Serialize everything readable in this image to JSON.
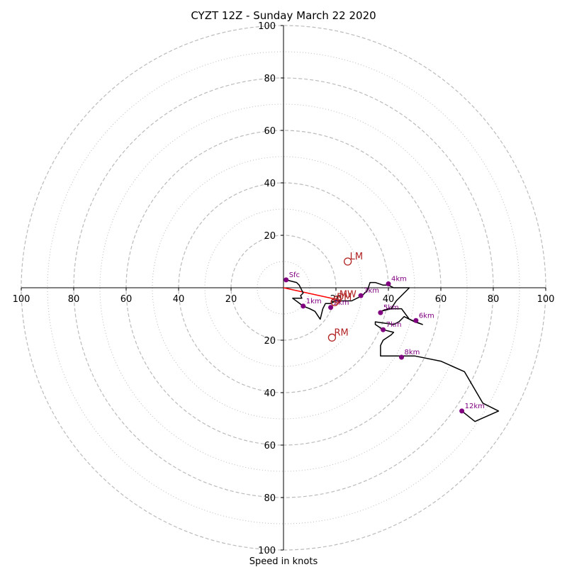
{
  "chart_data": {
    "type": "scatter",
    "title": "CYZT 12Z - Sunday March 22 2020",
    "xlabel": "Speed in knots",
    "xlim": [
      -100,
      100
    ],
    "ylim": [
      -100,
      100
    ],
    "ring_major": [
      20,
      40,
      60,
      80,
      100
    ],
    "ring_minor": [
      10,
      30,
      50,
      70,
      90
    ],
    "x_ticks": [
      {
        "value": -100,
        "label": "100"
      },
      {
        "value": -80,
        "label": "80"
      },
      {
        "value": -60,
        "label": "60"
      },
      {
        "value": -40,
        "label": "40"
      },
      {
        "value": -20,
        "label": "20"
      },
      {
        "value": 20,
        "label": "20"
      },
      {
        "value": 40,
        "label": "40"
      },
      {
        "value": 60,
        "label": "60"
      },
      {
        "value": 80,
        "label": "80"
      },
      {
        "value": 100,
        "label": "100"
      }
    ],
    "y_ticks": [
      {
        "value": 100,
        "label": "100"
      },
      {
        "value": 80,
        "label": "80"
      },
      {
        "value": 60,
        "label": "60"
      },
      {
        "value": 40,
        "label": "40"
      },
      {
        "value": 20,
        "label": "20"
      },
      {
        "value": -20,
        "label": "20"
      },
      {
        "value": -40,
        "label": "40"
      },
      {
        "value": -60,
        "label": "60"
      },
      {
        "value": -80,
        "label": "80"
      },
      {
        "value": -100,
        "label": "100"
      }
    ],
    "hodograph": [
      [
        1,
        3
      ],
      [
        5,
        2
      ],
      [
        6,
        1
      ],
      [
        7,
        -1
      ],
      [
        7.5,
        -2
      ],
      [
        6.5,
        -3
      ],
      [
        7,
        -4
      ],
      [
        5,
        -4
      ],
      [
        4,
        -4
      ],
      [
        3.5,
        -4
      ],
      [
        7.5,
        -7
      ],
      [
        10,
        -8
      ],
      [
        12,
        -9
      ],
      [
        14,
        -12
      ],
      [
        15,
        -8
      ],
      [
        16,
        -6
      ],
      [
        18,
        -6
      ],
      [
        20,
        -5
      ],
      [
        23,
        -5
      ],
      [
        26,
        -5
      ],
      [
        28,
        -4
      ],
      [
        30,
        -3
      ],
      [
        31,
        -2
      ],
      [
        32,
        -1
      ],
      [
        33,
        2
      ],
      [
        35,
        2
      ],
      [
        38,
        1
      ],
      [
        40,
        1
      ],
      [
        42,
        0
      ],
      [
        48,
        0
      ],
      [
        43,
        -5
      ],
      [
        41,
        -8
      ],
      [
        37,
        -9
      ],
      [
        40,
        -8
      ],
      [
        45,
        -8
      ],
      [
        48,
        -12
      ],
      [
        53,
        -14
      ],
      [
        50,
        -13
      ],
      [
        46,
        -11
      ],
      [
        44,
        -13
      ],
      [
        42,
        -14
      ],
      [
        35,
        -13
      ],
      [
        35,
        -14
      ],
      [
        38,
        -16
      ],
      [
        42,
        -17
      ],
      [
        41,
        -18
      ],
      [
        38,
        -20
      ],
      [
        37,
        -22
      ],
      [
        37,
        -26
      ],
      [
        50,
        -26
      ],
      [
        60,
        -28
      ],
      [
        69,
        -32
      ],
      [
        76,
        -44
      ],
      [
        82,
        -47
      ],
      [
        73,
        -51
      ],
      [
        68,
        -47
      ]
    ],
    "height_markers": [
      {
        "label": "Sfc",
        "x": 1,
        "y": 3
      },
      {
        "label": "1km",
        "x": 7.5,
        "y": -7
      },
      {
        "label": "2km",
        "x": 18,
        "y": -7.5
      },
      {
        "label": "3km",
        "x": 29.5,
        "y": -3
      },
      {
        "label": "4km",
        "x": 40,
        "y": 1.5
      },
      {
        "label": "5km",
        "x": 37,
        "y": -9.5
      },
      {
        "label": "6km",
        "x": 50.5,
        "y": -12.5
      },
      {
        "label": "7km",
        "x": 38,
        "y": -16
      },
      {
        "label": "8km",
        "x": 45,
        "y": -26.5
      },
      {
        "label": "12km",
        "x": 68,
        "y": -47
      }
    ],
    "storm_motion": [
      {
        "label": "LM",
        "x": 24.5,
        "y": 10
      },
      {
        "label": "MW",
        "x": 20.5,
        "y": -4.5
      },
      {
        "label": "DM",
        "x": 19.5,
        "y": -5.5
      },
      {
        "label": "RM",
        "x": 18.5,
        "y": -19
      }
    ],
    "shear_vector": {
      "from": [
        0,
        0
      ],
      "to": [
        20.5,
        -4.5
      ]
    },
    "colors": {
      "hodograph": "#000000",
      "markers": "#800080",
      "storm_motion": "#b22222",
      "shear_vector": "#ff0000",
      "grid": "#bbbbbb"
    }
  }
}
